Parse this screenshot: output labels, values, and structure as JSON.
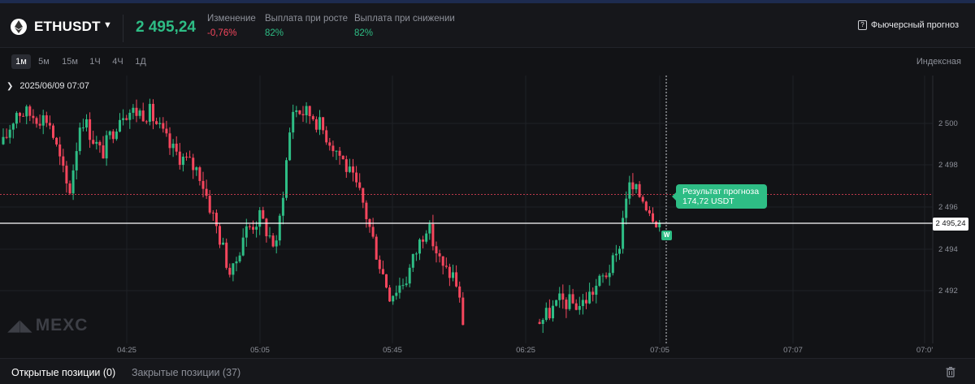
{
  "header": {
    "symbol": "ETHUSDT",
    "last_price": "2 495,24",
    "change_label": "Изменение",
    "change_value": "-0,76%",
    "payout_up_label": "Выплата при росте",
    "payout_up_value": "82%",
    "payout_down_label": "Выплата при снижении",
    "payout_down_value": "82%",
    "futures_forecast": "Фьючерсный прогноз"
  },
  "toolbar": {
    "intervals": [
      "1м",
      "5м",
      "15м",
      "1Ч",
      "4Ч",
      "1Д"
    ],
    "active_interval": "1м",
    "mode": "Индексная"
  },
  "chart_data": {
    "type": "candlestick",
    "crosshair_time": "2025/06/09 07:07",
    "watermark": "MEXC",
    "y_ticks": [
      "2 500",
      "2 498",
      "2 496",
      "2 494",
      "2 492"
    ],
    "x_ticks": [
      "04:25",
      "05:05",
      "05:45",
      "06:25",
      "07:05",
      "07:07",
      "07:0'"
    ],
    "current_price_label": "2 495,24",
    "target_line_price": 2496.6,
    "forecast_result": {
      "title": "Результат прогноза",
      "amount": "174,72 USDT"
    },
    "marker_label": "W",
    "colors": {
      "up": "#2ebd85",
      "down": "#f6465d",
      "grid": "#1f2126"
    },
    "y_range": [
      2490.4,
      2502.6
    ]
  },
  "positions": {
    "open_tab": "Открытые позиции (0)",
    "closed_tab": "Закрытые позиции (37)"
  },
  "icons": [
    "eth-logo-icon",
    "caret-down-icon",
    "question-icon",
    "trash-icon",
    "chevron-right-icon",
    "mexc-logo-icon"
  ]
}
